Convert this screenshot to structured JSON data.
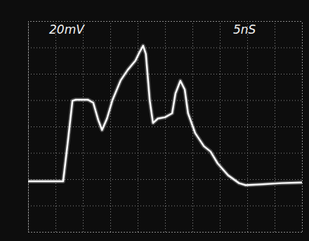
{
  "chart_data": {
    "type": "line",
    "x_label": "5nS",
    "y_label": "20mV",
    "x": [
      0,
      6.4,
      7.3,
      8.1,
      8.7,
      10.9,
      11.9,
      12.8,
      13.5,
      14.4,
      15.4,
      16.9,
      18.2,
      19.6,
      20.3,
      21.0,
      21.5,
      22.2,
      22.8,
      23.7,
      25.0,
      26.3,
      26.9,
      27.8,
      28.6,
      29.2,
      30.5,
      32.1,
      33.3,
      34.6,
      36.5,
      38.5,
      39.7,
      42.3,
      46.2,
      50
    ],
    "values": [
      -41.6,
      -41.6,
      -10,
      19.5,
      20.3,
      20.3,
      18,
      5,
      -2.7,
      6,
      20,
      35,
      43,
      50,
      56,
      61.3,
      55,
      20,
      2.7,
      6,
      7,
      10,
      25,
      34.7,
      28,
      10,
      -5,
      -15,
      -19,
      -28,
      -37,
      -43,
      -44.5,
      -44,
      -43,
      -42.5
    ],
    "color": "#ffffff",
    "xlim": [
      0,
      50
    ],
    "xticks": [
      0,
      5,
      10,
      15,
      20,
      25,
      30,
      35,
      40,
      45,
      50
    ],
    "ylim": [
      -80,
      80
    ],
    "yticks": [
      -80,
      -60,
      -40,
      -20,
      0,
      20,
      40,
      60,
      80
    ],
    "grid": true,
    "tick_labels": false
  }
}
